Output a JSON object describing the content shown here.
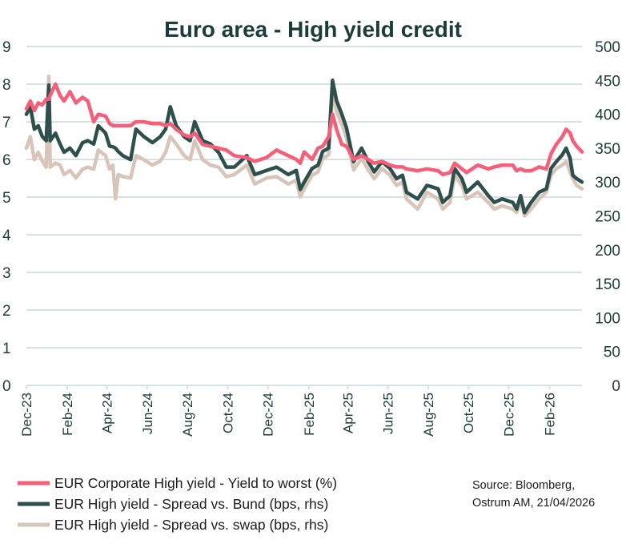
{
  "chart_data": {
    "type": "line",
    "title": "Euro area - High yield credit",
    "source": [
      "Source: Bloomberg,",
      "Ostrum AM, 21/04/2026"
    ],
    "x_tick_labels": [
      "Dec-23",
      "Feb-24",
      "Apr-24",
      "Jun-24",
      "Aug-24",
      "Oct-24",
      "Dec-24",
      "Feb-25",
      "Apr-25",
      "Jun-25",
      "Aug-25",
      "Oct-25",
      "Dec-25",
      "Feb-26"
    ],
    "x_tick_dates": [
      "2023-12-01",
      "2024-02-01",
      "2024-04-01",
      "2024-06-01",
      "2024-08-01",
      "2024-10-01",
      "2024-12-01",
      "2025-02-01",
      "2025-04-01",
      "2025-06-01",
      "2025-08-01",
      "2025-10-01",
      "2025-12-01",
      "2026-02-01"
    ],
    "x_range": [
      "2023-12-01",
      "2026-03-22"
    ],
    "y_left": {
      "range": [
        0,
        9
      ],
      "ticks": [
        "0",
        "1",
        "2",
        "3",
        "4",
        "5",
        "6",
        "7",
        "8",
        "9"
      ]
    },
    "y_right": {
      "range": [
        0,
        500
      ],
      "ticks": [
        "0",
        "50",
        "100",
        "150",
        "200",
        "250",
        "300",
        "350",
        "400",
        "450",
        "500"
      ]
    },
    "grid": true,
    "legend_position": "bottom-left",
    "dates": [
      "2023-12-01",
      "2023-12-07",
      "2023-12-13",
      "2023-12-19",
      "2023-12-25",
      "2023-12-31",
      "2024-01-04",
      "2024-01-06",
      "2024-01-14",
      "2024-01-21",
      "2024-01-27",
      "2024-02-05",
      "2024-02-14",
      "2024-02-24",
      "2024-03-03",
      "2024-03-12",
      "2024-03-19",
      "2024-03-30",
      "2024-04-05",
      "2024-04-10",
      "2024-04-14",
      "2024-04-18",
      "2024-04-25",
      "2024-05-07",
      "2024-05-15",
      "2024-05-27",
      "2024-06-09",
      "2024-06-21",
      "2024-06-29",
      "2024-07-06",
      "2024-07-15",
      "2024-07-27",
      "2024-08-05",
      "2024-08-12",
      "2024-08-24",
      "2024-09-05",
      "2024-09-17",
      "2024-09-29",
      "2024-10-11",
      "2024-10-30",
      "2024-11-11",
      "2024-11-29",
      "2024-12-14",
      "2025-01-01",
      "2025-01-13",
      "2025-01-19",
      "2025-01-25",
      "2025-02-06",
      "2025-02-15",
      "2025-02-22",
      "2025-03-03",
      "2025-03-09",
      "2025-03-15",
      "2025-03-23",
      "2025-03-30",
      "2025-04-10",
      "2025-04-22",
      "2025-05-02",
      "2025-05-11",
      "2025-05-23",
      "2025-06-04",
      "2025-06-14",
      "2025-06-23",
      "2025-06-29",
      "2025-07-16",
      "2025-07-30",
      "2025-08-16",
      "2025-08-23",
      "2025-09-03",
      "2025-09-10",
      "2025-09-21",
      "2025-09-28",
      "2025-10-15",
      "2025-10-31",
      "2025-11-09",
      "2025-11-21",
      "2025-12-07",
      "2025-12-13",
      "2025-12-19",
      "2025-12-25",
      "2026-01-04",
      "2026-01-16",
      "2026-01-27",
      "2026-02-03",
      "2026-02-11",
      "2026-02-20",
      "2026-02-26",
      "2026-03-04",
      "2026-03-08",
      "2026-03-14",
      "2026-03-22"
    ],
    "series": [
      {
        "name": "EUR Corporate High yield - Yield to worst  (%)",
        "axis": "left",
        "color": "#f4607a",
        "values": [
          7.35,
          7.55,
          7.3,
          7.5,
          7.45,
          7.6,
          7.6,
          7.7,
          8.0,
          7.7,
          7.55,
          7.8,
          7.5,
          7.65,
          7.55,
          7.0,
          7.2,
          7.15,
          6.95,
          6.9,
          6.9,
          6.9,
          6.9,
          6.9,
          7.0,
          7.0,
          6.95,
          6.95,
          6.9,
          6.95,
          6.8,
          6.65,
          6.6,
          6.7,
          6.4,
          6.35,
          6.3,
          6.25,
          6.1,
          6.05,
          5.95,
          6.05,
          6.25,
          6.1,
          6.0,
          5.9,
          6.2,
          6.0,
          6.3,
          6.35,
          6.6,
          7.2,
          6.8,
          6.4,
          6.35,
          6.0,
          6.1,
          6.0,
          5.9,
          5.95,
          5.85,
          5.8,
          5.8,
          5.75,
          5.7,
          5.75,
          5.7,
          5.6,
          5.65,
          5.9,
          5.75,
          5.65,
          5.85,
          5.75,
          5.8,
          5.85,
          5.85,
          5.7,
          5.75,
          5.7,
          5.7,
          5.8,
          5.75,
          6.15,
          6.4,
          6.6,
          6.8,
          6.7,
          6.5,
          6.35,
          6.2
        ]
      },
      {
        "name": "EUR High yield - Spread vs. Bund  (bps, rhs)",
        "axis": "right",
        "color": "#2e4f4b",
        "values": [
          400,
          411,
          378,
          383,
          367,
          361,
          443,
          361,
          372,
          356,
          344,
          350,
          339,
          358,
          361,
          356,
          383,
          372,
          353,
          352,
          350,
          345,
          339,
          333,
          378,
          367,
          358,
          367,
          378,
          411,
          383,
          367,
          361,
          389,
          361,
          356,
          344,
          322,
          322,
          339,
          311,
          317,
          322,
          311,
          317,
          289,
          300,
          320,
          325,
          345,
          350,
          450,
          420,
          400,
          380,
          330,
          350,
          330,
          315,
          330,
          320,
          305,
          310,
          285,
          275,
          295,
          290,
          270,
          280,
          320,
          305,
          285,
          300,
          280,
          270,
          275,
          270,
          260,
          280,
          255,
          270,
          285,
          290,
          320,
          330,
          340,
          350,
          335,
          310,
          305,
          300
        ]
      },
      {
        "name": "EUR High yield - Spread vs. swap  (bps, rhs)",
        "axis": "right",
        "color": "#d8c5b9",
        "values": [
          350,
          367,
          333,
          344,
          331,
          322,
          456,
          322,
          328,
          325,
          311,
          317,
          306,
          319,
          322,
          319,
          347,
          339,
          319,
          325,
          275,
          311,
          308,
          306,
          339,
          333,
          325,
          331,
          344,
          367,
          356,
          339,
          333,
          361,
          333,
          325,
          322,
          308,
          311,
          325,
          297,
          306,
          308,
          297,
          303,
          278,
          290,
          310,
          315,
          335,
          340,
          430,
          405,
          385,
          365,
          318,
          335,
          318,
          305,
          320,
          310,
          295,
          300,
          275,
          260,
          285,
          275,
          260,
          270,
          310,
          295,
          275,
          285,
          270,
          260,
          265,
          260,
          255,
          270,
          250,
          260,
          275,
          285,
          310,
          320,
          325,
          330,
          315,
          305,
          295,
          290
        ]
      }
    ]
  }
}
